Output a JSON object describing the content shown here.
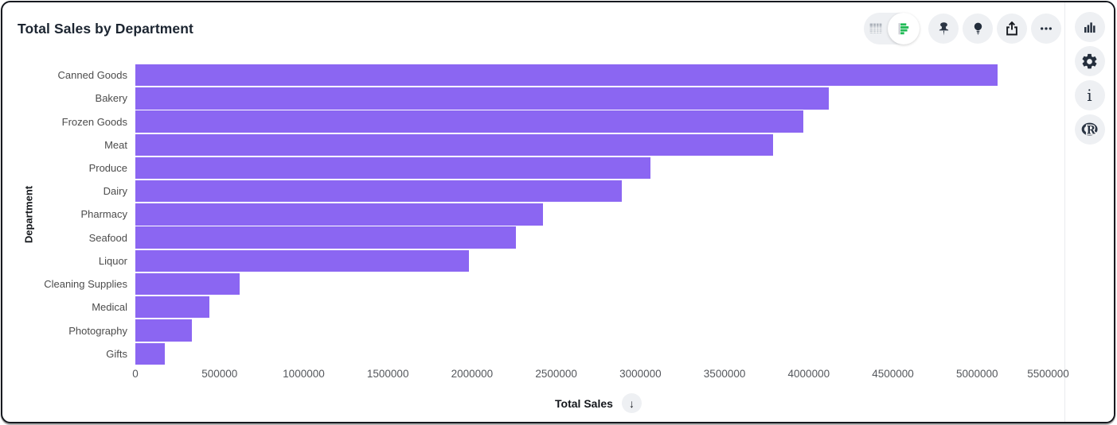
{
  "header": {
    "title": "Total Sales by Department"
  },
  "toolbar": {
    "view_toggle": {
      "options": [
        {
          "name": "table-view",
          "icon": "table-view-icon",
          "selected": false
        },
        {
          "name": "chart-view",
          "icon": "bar-chart-view-icon",
          "selected": true
        }
      ]
    },
    "buttons": [
      {
        "name": "pin",
        "icon": "pin-icon"
      },
      {
        "name": "insights",
        "icon": "lightbulb-icon"
      },
      {
        "name": "share",
        "icon": "share-icon"
      },
      {
        "name": "more",
        "icon": "ellipsis-icon"
      }
    ]
  },
  "right_rail": {
    "buttons": [
      {
        "name": "visualization",
        "icon": "bar-chart-icon"
      },
      {
        "name": "settings",
        "icon": "gear-icon"
      },
      {
        "name": "info",
        "icon": "info-icon",
        "glyph": "i"
      },
      {
        "name": "r-language",
        "icon": "r-logo-icon"
      }
    ]
  },
  "x_axis": {
    "title": "Total Sales",
    "sort_glyph": "↓"
  },
  "y_axis": {
    "title": "Department"
  },
  "colors": {
    "bar": "#8b66f2",
    "toggle_green": "#21ba56",
    "icon_dark": "#2b3544",
    "button_bg": "#eef0f3"
  },
  "chart_data": {
    "type": "bar",
    "orientation": "horizontal",
    "title": "Total Sales by Department",
    "categories": [
      "Canned Goods",
      "Bakery",
      "Frozen Goods",
      "Meat",
      "Produce",
      "Dairy",
      "Pharmacy",
      "Seafood",
      "Liquor",
      "Cleaning Supplies",
      "Medical",
      "Photography",
      "Gifts"
    ],
    "values": [
      5120000,
      4120000,
      3970000,
      3790000,
      3060000,
      2890000,
      2420000,
      2260000,
      1980000,
      620000,
      440000,
      335000,
      177000
    ],
    "xlabel": "Total Sales",
    "ylabel": "Department",
    "xlim": [
      0,
      5500000
    ],
    "x_ticks": [
      0,
      500000,
      1000000,
      1500000,
      2000000,
      2500000,
      3000000,
      3500000,
      4000000,
      4500000,
      5000000,
      5500000
    ],
    "sort": "descending",
    "grid": false,
    "legend": false,
    "bar_color": "#8b66f2"
  }
}
